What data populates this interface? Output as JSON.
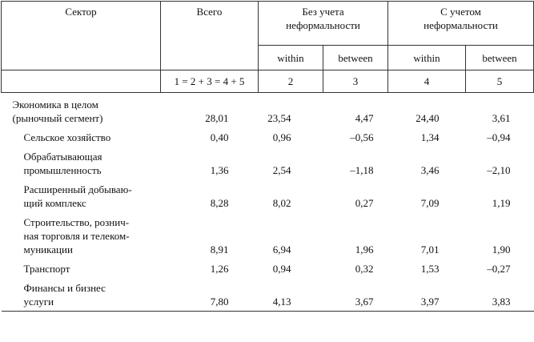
{
  "table": {
    "header": {
      "sector": "Сектор",
      "total": "Всего",
      "group1": [
        "Без учета",
        "неформальности"
      ],
      "group2": [
        "С учетом",
        "неформальности"
      ],
      "sub": [
        "within",
        "between",
        "within",
        "between"
      ],
      "numbers": [
        "1 = 2 + 3 = 4 + 5",
        "2",
        "3",
        "4",
        "5"
      ]
    },
    "rows": [
      {
        "name": [
          "Экономика в целом",
          "(рыночный сегмент)"
        ],
        "values": [
          "28,01",
          "23,54",
          "4,47",
          "24,40",
          "3,61"
        ]
      },
      {
        "name": [
          "Сельское хозяйство"
        ],
        "values": [
          "0,40",
          "0,96",
          "–0,56",
          "1,34",
          "–0,94"
        ]
      },
      {
        "name": [
          "Обрабатывающая",
          "промышленность"
        ],
        "values": [
          "1,36",
          "2,54",
          "–1,18",
          "3,46",
          "–2,10"
        ]
      },
      {
        "name": [
          "Расширенный добываю-",
          "щий комплекс"
        ],
        "values": [
          "8,28",
          "8,02",
          "0,27",
          "7,09",
          "1,19"
        ]
      },
      {
        "name": [
          "Строительство, рознич-",
          "ная торговля и телеком-",
          "муникации"
        ],
        "values": [
          "8,91",
          "6,94",
          "1,96",
          "7,01",
          "1,90"
        ]
      },
      {
        "name": [
          "Транспорт"
        ],
        "values": [
          "1,26",
          "0,94",
          "0,32",
          "1,53",
          "–0,27"
        ]
      },
      {
        "name": [
          "Финансы и бизнес",
          "услуги"
        ],
        "values": [
          "7,80",
          "4,13",
          "3,67",
          "3,97",
          "3,83"
        ]
      }
    ]
  }
}
